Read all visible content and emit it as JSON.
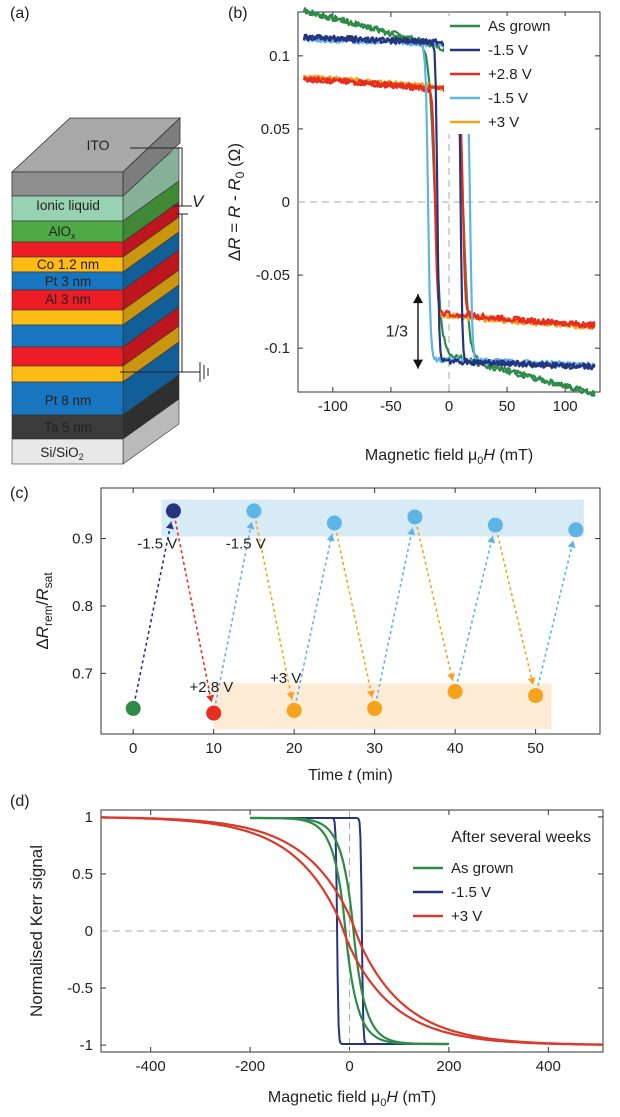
{
  "panel_a": {
    "label": "(a)",
    "layers": {
      "ito": "ITO",
      "ionic": "Ionic liquid",
      "alox_main": "AlO",
      "alox_sub": "x",
      "co": "Co 1.2 nm",
      "pt3": "Pt 3 nm",
      "al": "Al 3 nm",
      "pt8": "Pt 8 nm",
      "ta": "Ta 5 nm",
      "si_main": "Si/SiO",
      "si_sub": "2"
    },
    "voltage": "V",
    "colors": {
      "ito": "#9a9a9a",
      "ionic": "#7fc6a0",
      "alox": "#4daa44",
      "red": "#ee1c25",
      "yellow": "#fdbb13",
      "blue": "#1776bf",
      "ta": "#3b3b3b",
      "si": "#e8e8e8"
    }
  },
  "chart_data": [
    {
      "panel": "(b)",
      "type": "line",
      "xlabel": {
        "main": "Magnetic field μ",
        "sub": "0",
        "ital": "H",
        "unit": " (mT)"
      },
      "ylabel": {
        "delta": "Δ",
        "r1": "R",
        "eq": " = ",
        "r2": "R",
        "minus": " - ",
        "r3": "R",
        "sub": "0",
        "unit": " (Ω)"
      },
      "xlim": [
        -130,
        130
      ],
      "ylim": [
        -0.13,
        0.13
      ],
      "xticks": [
        -100,
        -50,
        0,
        50,
        100
      ],
      "xtick_labels": [
        "-100",
        "-50",
        "0",
        "50",
        "100"
      ],
      "yticks": [
        -0.1,
        -0.05,
        0,
        0.05,
        0.1
      ],
      "ytick_labels": [
        "-0.1",
        "-0.05",
        "0",
        "0.05",
        "0.1"
      ],
      "annotation": "1/3",
      "legend_position": "top-right",
      "series": [
        {
          "name": "As grown",
          "color": "#2e8b48",
          "sat": 0.106,
          "slope": 0.0002,
          "hc": 12,
          "width": 5,
          "knee": 0.065
        },
        {
          "name": "-1.5 V",
          "color": "#26337f",
          "sat": 0.109,
          "slope": 3e-05,
          "hc": 10,
          "width": 1.5,
          "knee": 0.0
        },
        {
          "name": "+2.8 V",
          "color": "#e62d1f",
          "sat": 0.078,
          "slope": 5e-05,
          "hc": 12,
          "width": 2,
          "knee": 0.07
        },
        {
          "name": "-1.5 V",
          "color": "#5fb4e6",
          "sat": 0.108,
          "slope": 3e-05,
          "hc": 18,
          "width": 2,
          "knee": 0.0
        },
        {
          "name": "+3 V",
          "color": "#f6a21d",
          "sat": 0.079,
          "slope": 5e-05,
          "hc": 12,
          "width": 2,
          "knee": 0.07
        }
      ]
    },
    {
      "panel": "(c)",
      "type": "scatter",
      "xlabel": {
        "main": "Time ",
        "ital": "t",
        "unit": " (min)"
      },
      "ylabel": {
        "delta": "Δ",
        "r1": "R",
        "sub1": "rem",
        "slash": "/",
        "r2": "R",
        "sub2": "sat"
      },
      "xlim": [
        -4,
        58
      ],
      "ylim": [
        0.61,
        0.975
      ],
      "xticks": [
        0,
        10,
        20,
        30,
        40,
        50
      ],
      "xtick_labels": [
        "0",
        "10",
        "20",
        "30",
        "40",
        "50"
      ],
      "yticks": [
        0.7,
        0.8,
        0.9
      ],
      "ytick_labels": [
        "0.7",
        "0.8",
        "0.9"
      ],
      "points": [
        {
          "x": 0,
          "y": 0.648,
          "color": "#2e8b48"
        },
        {
          "x": 5,
          "y": 0.941,
          "color": "#26337f"
        },
        {
          "x": 10,
          "y": 0.641,
          "color": "#e62d1f"
        },
        {
          "x": 15,
          "y": 0.941,
          "color": "#5fb4e6"
        },
        {
          "x": 20,
          "y": 0.645,
          "color": "#f6a21d"
        },
        {
          "x": 25,
          "y": 0.923,
          "color": "#5fb4e6"
        },
        {
          "x": 30,
          "y": 0.648,
          "color": "#f6a21d"
        },
        {
          "x": 35,
          "y": 0.932,
          "color": "#5fb4e6"
        },
        {
          "x": 40,
          "y": 0.673,
          "color": "#f6a21d"
        },
        {
          "x": 45,
          "y": 0.92,
          "color": "#5fb4e6"
        },
        {
          "x": 50,
          "y": 0.667,
          "color": "#f6a21d"
        },
        {
          "x": 55,
          "y": 0.913,
          "color": "#5fb4e6"
        }
      ],
      "bands": [
        {
          "x0": 3.5,
          "x1": 56,
          "y0": 0.903,
          "y1": 0.958,
          "color": "#d7ebf6"
        },
        {
          "x0": 10,
          "x1": 52,
          "y0": 0.617,
          "y1": 0.685,
          "color": "#fdebd6"
        }
      ],
      "labels": [
        {
          "text": "-1.5 V",
          "x": 0.5,
          "y": 0.885,
          "color": "#26337f"
        },
        {
          "text": "-1.5 V",
          "x": 11.5,
          "y": 0.885,
          "color": "#5fb4e6"
        },
        {
          "text": "+2.8 V",
          "x": 7,
          "y": 0.672,
          "color": "#e62d1f"
        },
        {
          "text": "+3 V",
          "x": 17,
          "y": 0.686,
          "color": "#f6a21d"
        }
      ]
    },
    {
      "panel": "(d)",
      "type": "line",
      "title": "After several weeks",
      "xlabel": {
        "main": "Magnetic field μ",
        "sub": "0",
        "ital": "H",
        "unit": " (mT)"
      },
      "ylabel": "Normalised Kerr signal",
      "xlim": [
        -500,
        510
      ],
      "ylim": [
        -1.06,
        1.06
      ],
      "xticks": [
        -400,
        -200,
        0,
        200,
        400
      ],
      "xtick_labels": [
        "-400",
        "-200",
        "0",
        "200",
        "400"
      ],
      "yticks": [
        -1,
        -0.5,
        0,
        0.5,
        1
      ],
      "ytick_labels": [
        "-1",
        "-0.5",
        "0",
        "0.5",
        "1"
      ],
      "legend_position": "top-right",
      "series": [
        {
          "name": "As grown",
          "color": "#2e8b48",
          "x_range": [
            -200,
            200
          ]
        },
        {
          "name": "-1.5 V",
          "color": "#26337f",
          "x_range": [
            -200,
            200
          ]
        },
        {
          "name": "+3 V",
          "color": "#d93a2b",
          "x_range": [
            -500,
            510
          ]
        }
      ]
    }
  ]
}
